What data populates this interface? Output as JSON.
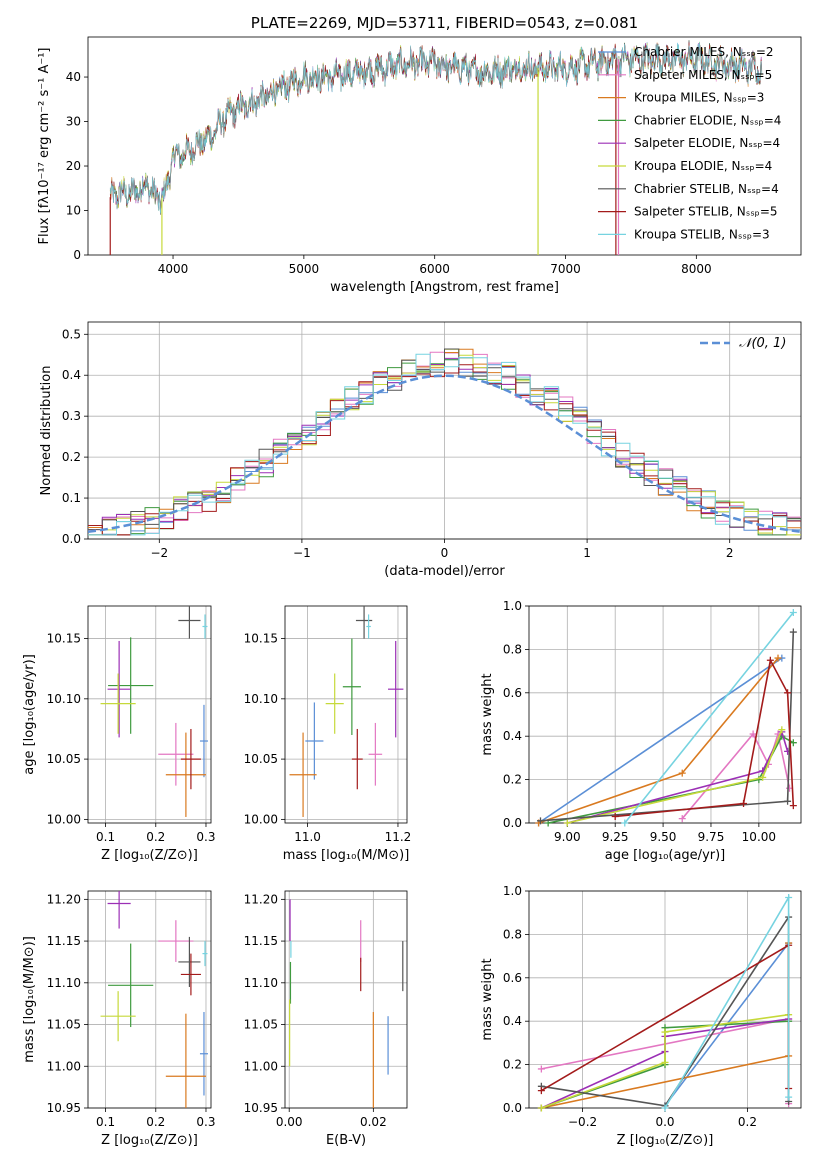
{
  "colors": {
    "Chabrier MILES": "#5b8fd6",
    "Salpeter MILES": "#e377c2",
    "Kroupa MILES": "#d97a20",
    "Chabrier ELODIE": "#3f9a3f",
    "Salpeter ELODIE": "#9b2fb5",
    "Kroupa ELODIE": "#c6d93a",
    "Chabrier STELIB": "#555555",
    "Salpeter STELIB": "#a31b1b",
    "Kroupa STELIB": "#76d3e0"
  },
  "chart_data": [
    {
      "id": "spectrum",
      "type": "line",
      "title": "PLATE=2269, MJD=53711, FIBERID=0543, z=0.081",
      "xlabel": "wavelength [Angstrom, rest frame]",
      "ylabel": "Flux [fλ10⁻¹⁷ erg cm⁻² s⁻¹ A⁻¹]",
      "xlim": [
        3350,
        8800
      ],
      "ylim": [
        0,
        49
      ],
      "xticks": [
        4000,
        5000,
        6000,
        7000,
        8000
      ],
      "yticks": [
        0,
        10,
        20,
        30,
        40
      ],
      "legend_position": "top-right",
      "legend": [
        "Chabrier MILES, Nₛₛₚ=2",
        "Salpeter MILES, Nₛₛₚ=5",
        "Kroupa MILES, Nₛₛₚ=3",
        "Chabrier ELODIE, Nₛₛₚ=4",
        "Salpeter ELODIE, Nₛₛₚ=4",
        "Kroupa ELODIE, Nₛₛₚ=4",
        "Chabrier STELIB, Nₛₛₚ=4",
        "Salpeter STELIB, Nₛₛₚ=5",
        "Kroupa STELIB, Nₛₛₚ=3"
      ],
      "continuum": {
        "x": [
          3520,
          3600,
          3700,
          3800,
          3900,
          3950,
          4000,
          4100,
          4200,
          4300,
          4400,
          4500,
          4600,
          4800,
          5000,
          5200,
          5400,
          5600,
          5800,
          6000,
          6200,
          6400,
          6600,
          6800,
          7000,
          7200,
          7400,
          7600,
          7800,
          8000,
          8200,
          8400,
          8500
        ],
        "y": [
          13,
          14,
          14,
          16,
          12,
          15,
          22,
          23,
          25,
          27,
          31,
          33,
          34,
          37,
          40,
          40,
          41,
          42,
          43,
          43,
          42,
          41,
          42,
          42,
          42,
          43,
          44,
          44,
          44,
          44,
          43,
          42,
          42
        ]
      },
      "drop_lines": [
        {
          "x": 3520,
          "model": "Salpeter STELIB"
        },
        {
          "x": 3915,
          "model": "Kroupa ELODIE"
        },
        {
          "x": 6790,
          "model": "Kroupa ELODIE"
        },
        {
          "x": 7385,
          "model": "Salpeter STELIB"
        },
        {
          "x": 7405,
          "model": "Salpeter MILES"
        }
      ]
    },
    {
      "id": "residuals",
      "type": "histogram",
      "xlabel": "(data-model)/error",
      "ylabel": "Normed distribution",
      "xlim": [
        -2.5,
        2.5
      ],
      "ylim": [
        0,
        0.53
      ],
      "xticks": [
        -2,
        -1,
        0,
        1,
        2
      ],
      "yticks": [
        0.0,
        0.1,
        0.2,
        0.3,
        0.4,
        0.5
      ],
      "grid": true,
      "legend": [
        "𝒩(0, 1)"
      ],
      "legend_position": "top-right",
      "bin_width": 0.1,
      "bin_start": -2.5,
      "reference_curve": "normal(0,1)"
    },
    {
      "id": "age_vs_Z",
      "type": "errorbar",
      "xlabel": "Z [log₁₀(Z/Z⊙)]",
      "ylabel": "age  [log₁₀(age/yr)]",
      "xlim": [
        0.065,
        0.31
      ],
      "ylim": [
        9.997,
        10.177
      ],
      "xticks": [
        0.1,
        0.2,
        0.3
      ],
      "yticks": [
        10.0,
        10.05,
        10.1,
        10.15
      ],
      "points": [
        {
          "model": "Chabrier MILES",
          "x": 0.296,
          "y": 10.065,
          "xerr": 0.008,
          "yerr": 0.03
        },
        {
          "model": "Salpeter MILES",
          "x": 0.24,
          "y": 10.054,
          "xerr": 0.035,
          "yerr": 0.026
        },
        {
          "model": "Kroupa MILES",
          "x": 0.26,
          "y": 10.037,
          "xerr": 0.04,
          "yerr": 0.035
        },
        {
          "model": "Chabrier ELODIE",
          "x": 0.15,
          "y": 10.111,
          "xerr": 0.045,
          "yerr": 0.04
        },
        {
          "model": "Salpeter ELODIE",
          "x": 0.127,
          "y": 10.108,
          "xerr": 0.023,
          "yerr": 0.04
        },
        {
          "model": "Kroupa ELODIE",
          "x": 0.125,
          "y": 10.096,
          "xerr": 0.035,
          "yerr": 0.025
        },
        {
          "model": "Chabrier STELIB",
          "x": 0.267,
          "y": 10.165,
          "xerr": 0.022,
          "yerr": 0.015
        },
        {
          "model": "Salpeter STELIB",
          "x": 0.27,
          "y": 10.05,
          "xerr": 0.02,
          "yerr": 0.025
        },
        {
          "model": "Kroupa STELIB",
          "x": 0.298,
          "y": 10.16,
          "xerr": 0.005,
          "yerr": 0.01
        }
      ]
    },
    {
      "id": "age_vs_mass",
      "type": "errorbar",
      "xlabel": "mass [log₁₀(M/M⊙)]",
      "xlim": [
        10.95,
        11.22
      ],
      "ylim": [
        9.997,
        10.177
      ],
      "xticks": [
        11.0,
        11.2
      ],
      "yticks": [
        10.0,
        10.05,
        10.1,
        10.15
      ],
      "points": [
        {
          "model": "Chabrier MILES",
          "x": 11.015,
          "y": 10.065,
          "xerr": 0.02,
          "yerr": 0.032
        },
        {
          "model": "Salpeter MILES",
          "x": 11.15,
          "y": 10.054,
          "xerr": 0.015,
          "yerr": 0.026
        },
        {
          "model": "Kroupa MILES",
          "x": 10.99,
          "y": 10.037,
          "xerr": 0.03,
          "yerr": 0.035
        },
        {
          "model": "Chabrier ELODIE",
          "x": 11.098,
          "y": 10.11,
          "xerr": 0.02,
          "yerr": 0.04
        },
        {
          "model": "Salpeter ELODIE",
          "x": 11.195,
          "y": 10.108,
          "xerr": 0.017,
          "yerr": 0.04
        },
        {
          "model": "Kroupa ELODIE",
          "x": 11.06,
          "y": 10.096,
          "xerr": 0.02,
          "yerr": 0.025
        },
        {
          "model": "Chabrier STELIB",
          "x": 11.125,
          "y": 10.165,
          "xerr": 0.018,
          "yerr": 0.015
        },
        {
          "model": "Salpeter STELIB",
          "x": 11.11,
          "y": 10.05,
          "xerr": 0.012,
          "yerr": 0.025
        },
        {
          "model": "Kroupa STELIB",
          "x": 11.135,
          "y": 10.16,
          "xerr": 0.005,
          "yerr": 0.01
        }
      ]
    },
    {
      "id": "massweight_vs_age",
      "type": "line",
      "xlabel": "age  [log₁₀(age/yr)]",
      "ylabel": "mass weight",
      "xlim": [
        8.8,
        10.22
      ],
      "ylim": [
        0,
        1
      ],
      "xticks": [
        9.0,
        9.25,
        9.5,
        9.75,
        10.0
      ],
      "xticklabels": [
        "9.00",
        "9.25",
        "9.50",
        "9.75",
        "10.00"
      ],
      "yticks": [
        0,
        0.2,
        0.4,
        0.6,
        0.8,
        1.0
      ],
      "yticklabels": [
        "0.0",
        "0.2",
        "0.4",
        "0.6",
        "0.8",
        "1.0"
      ],
      "grid": true,
      "series": [
        {
          "model": "Chabrier MILES",
          "x": [
            8.85,
            10.12
          ],
          "y": [
            0.0,
            0.76
          ]
        },
        {
          "model": "Salpeter MILES",
          "x": [
            9.6,
            9.97,
            10.05,
            10.1,
            10.16
          ],
          "y": [
            0.02,
            0.41,
            0.27,
            0.41,
            0.16
          ]
        },
        {
          "model": "Kroupa MILES",
          "x": [
            8.85,
            9.6,
            10.1
          ],
          "y": [
            0.0,
            0.23,
            0.76
          ]
        },
        {
          "model": "Chabrier ELODIE",
          "x": [
            8.9,
            10.0,
            10.12,
            10.18
          ],
          "y": [
            0.0,
            0.2,
            0.4,
            0.37
          ]
        },
        {
          "model": "Salpeter ELODIE",
          "x": [
            9.0,
            10.02,
            10.12,
            10.15
          ],
          "y": [
            0.0,
            0.24,
            0.42,
            0.33
          ]
        },
        {
          "model": "Kroupa ELODIE",
          "x": [
            9.0,
            10.02,
            10.12
          ],
          "y": [
            0.0,
            0.21,
            0.43
          ]
        },
        {
          "model": "Chabrier STELIB",
          "x": [
            8.86,
            10.15,
            10.18
          ],
          "y": [
            0.01,
            0.1,
            0.88
          ]
        },
        {
          "model": "Salpeter STELIB",
          "x": [
            9.25,
            9.92,
            10.06,
            10.15,
            10.18
          ],
          "y": [
            0.03,
            0.09,
            0.75,
            0.6,
            0.08
          ]
        },
        {
          "model": "Kroupa STELIB",
          "x": [
            9.3,
            10.18
          ],
          "y": [
            0.0,
            0.97
          ]
        }
      ]
    },
    {
      "id": "mass_vs_Z",
      "type": "errorbar",
      "xlabel": "Z [log₁₀(Z/Z⊙)]",
      "ylabel": "mass [log₁₀(M/M⊙)]",
      "xlim": [
        0.065,
        0.31
      ],
      "ylim": [
        10.95,
        11.21
      ],
      "xticks": [
        0.1,
        0.2,
        0.3
      ],
      "yticks": [
        10.95,
        11.0,
        11.05,
        11.1,
        11.15,
        11.2
      ],
      "points": [
        {
          "model": "Chabrier MILES",
          "x": 0.296,
          "y": 11.015,
          "xerr": 0.008,
          "yerr": 0.05
        },
        {
          "model": "Salpeter MILES",
          "x": 0.24,
          "y": 11.15,
          "xerr": 0.035,
          "yerr": 0.025
        },
        {
          "model": "Kroupa MILES",
          "x": 0.26,
          "y": 10.988,
          "xerr": 0.04,
          "yerr": 0.075
        },
        {
          "model": "Chabrier ELODIE",
          "x": 0.15,
          "y": 11.097,
          "xerr": 0.045,
          "yerr": 0.05
        },
        {
          "model": "Salpeter ELODIE",
          "x": 0.127,
          "y": 11.195,
          "xerr": 0.023,
          "yerr": 0.03
        },
        {
          "model": "Kroupa ELODIE",
          "x": 0.125,
          "y": 11.06,
          "xerr": 0.035,
          "yerr": 0.03
        },
        {
          "model": "Chabrier STELIB",
          "x": 0.267,
          "y": 11.125,
          "xerr": 0.022,
          "yerr": 0.03
        },
        {
          "model": "Salpeter STELIB",
          "x": 0.27,
          "y": 11.11,
          "xerr": 0.02,
          "yerr": 0.025
        },
        {
          "model": "Kroupa STELIB",
          "x": 0.298,
          "y": 11.135,
          "xerr": 0.005,
          "yerr": 0.015
        }
      ]
    },
    {
      "id": "mass_vs_EBV",
      "type": "errorbar",
      "xlabel": "E(B-V)",
      "xlim": [
        -0.001,
        0.028
      ],
      "ylim": [
        10.95,
        11.21
      ],
      "xticks": [
        0.0,
        0.02
      ],
      "xticklabels": [
        "0.00",
        "0.02"
      ],
      "yticks": [
        10.95,
        11.0,
        11.05,
        11.1,
        11.15,
        11.2
      ],
      "points": [
        {
          "model": "Chabrier MILES",
          "x": 0.0235,
          "y": 11.025,
          "xerr": 0,
          "yerr": 0.035
        },
        {
          "model": "Salpeter MILES",
          "x": 0.017,
          "y": 11.15,
          "xerr": 0,
          "yerr": 0.025
        },
        {
          "model": "Kroupa MILES",
          "x": 0.02,
          "y": 11.0,
          "xerr": 0,
          "yerr": 0.065
        },
        {
          "model": "Chabrier ELODIE",
          "x": 0.0003,
          "y": 11.1,
          "xerr": 0,
          "yerr": 0.025
        },
        {
          "model": "Salpeter ELODIE",
          "x": 0.0002,
          "y": 11.175,
          "xerr": 0,
          "yerr": 0.025
        },
        {
          "model": "Kroupa ELODIE",
          "x": 0.0001,
          "y": 11.04,
          "xerr": 0,
          "yerr": 0.04
        },
        {
          "model": "Chabrier STELIB",
          "x": 0.027,
          "y": 11.12,
          "xerr": 0,
          "yerr": 0.03
        },
        {
          "model": "Salpeter STELIB",
          "x": 0.017,
          "y": 11.11,
          "xerr": 0,
          "yerr": 0.02
        },
        {
          "model": "Kroupa STELIB",
          "x": 0.0004,
          "y": 11.14,
          "xerr": 0,
          "yerr": 0.01
        }
      ]
    },
    {
      "id": "massweight_vs_Z",
      "type": "line",
      "xlabel": "Z [log₁₀(Z/Z⊙)]",
      "ylabel": "mass weight",
      "xlim": [
        -0.33,
        0.33
      ],
      "ylim": [
        0,
        1
      ],
      "xticks": [
        -0.2,
        0.0,
        0.2
      ],
      "xticklabels": [
        "−0.2",
        "0.0",
        "0.2"
      ],
      "yticks": [
        0,
        0.2,
        0.4,
        0.6,
        0.8,
        1.0
      ],
      "yticklabels": [
        "0.0",
        "0.2",
        "0.4",
        "0.6",
        "0.8",
        "1.0"
      ],
      "grid": true,
      "series": [
        {
          "model": "Chabrier MILES",
          "x": [
            0.0,
            0.3
          ],
          "y": [
            0.01,
            0.76
          ]
        },
        {
          "model": "Salpeter MILES",
          "x": [
            -0.3,
            0.3,
            0.3
          ],
          "y": [
            0.18,
            0.41,
            0.02
          ]
        },
        {
          "model": "Kroupa MILES",
          "x": [
            -0.3,
            0.3,
            0.3
          ],
          "y": [
            0.0,
            0.24,
            0.76
          ]
        },
        {
          "model": "Chabrier ELODIE",
          "x": [
            -0.3,
            0.0,
            0.0,
            0.3
          ],
          "y": [
            0.0,
            0.2,
            0.37,
            0.4
          ]
        },
        {
          "model": "Salpeter ELODIE",
          "x": [
            -0.3,
            0.0,
            0.0,
            0.3
          ],
          "y": [
            0.0,
            0.26,
            0.33,
            0.41
          ]
        },
        {
          "model": "Kroupa ELODIE",
          "x": [
            -0.3,
            0.0,
            0.0,
            0.3
          ],
          "y": [
            0.0,
            0.21,
            0.35,
            0.43
          ]
        },
        {
          "model": "Chabrier STELIB",
          "x": [
            -0.3,
            0.0,
            0.3,
            0.3
          ],
          "y": [
            0.1,
            0.01,
            0.88,
            0.03
          ]
        },
        {
          "model": "Salpeter STELIB",
          "x": [
            -0.3,
            0.3,
            0.3
          ],
          "y": [
            0.08,
            0.75,
            0.09
          ]
        },
        {
          "model": "Kroupa STELIB",
          "x": [
            0.0,
            0.3,
            0.3
          ],
          "y": [
            0.0,
            0.97,
            0.05
          ]
        }
      ]
    }
  ]
}
